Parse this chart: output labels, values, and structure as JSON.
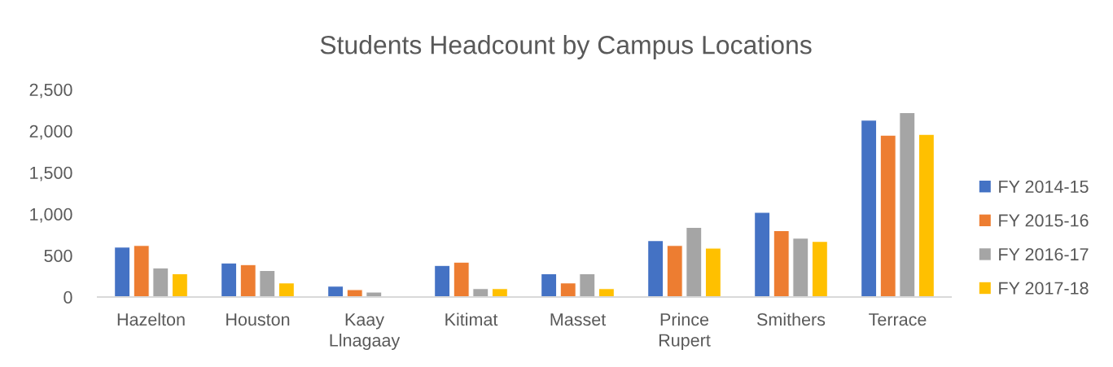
{
  "chart_data": {
    "type": "bar",
    "title": "Students Headcount by Campus Locations",
    "categories": [
      "Hazelton",
      "Houston",
      "Kaay\nLlnagaay",
      "Kitimat",
      "Masset",
      "Prince\nRupert",
      "Smithers",
      "Terrace"
    ],
    "series": [
      {
        "name": "FY 2014-15",
        "color": "#4472c4",
        "values": [
          600,
          410,
          130,
          380,
          280,
          680,
          1020,
          2130
        ]
      },
      {
        "name": "FY 2015-16",
        "color": "#ed7d31",
        "values": [
          620,
          390,
          90,
          420,
          170,
          620,
          800,
          1950
        ]
      },
      {
        "name": "FY 2016-17",
        "color": "#a5a5a5",
        "values": [
          350,
          320,
          60,
          100,
          280,
          840,
          710,
          2220
        ]
      },
      {
        "name": "FY 2017-18",
        "color": "#ffc000",
        "values": [
          280,
          170,
          null,
          100,
          100,
          590,
          670,
          1960
        ]
      }
    ],
    "ylim": [
      0,
      2500
    ],
    "yticks": [
      0,
      {
        "value": 500,
        "label": "500"
      },
      {
        "value": 1000,
        "label": "1,000"
      },
      {
        "value": 1500,
        "label": "1,500"
      },
      {
        "value": 2000,
        "label": "2,000"
      },
      {
        "value": 2500,
        "label": "2,500"
      }
    ],
    "legend": "right"
  }
}
